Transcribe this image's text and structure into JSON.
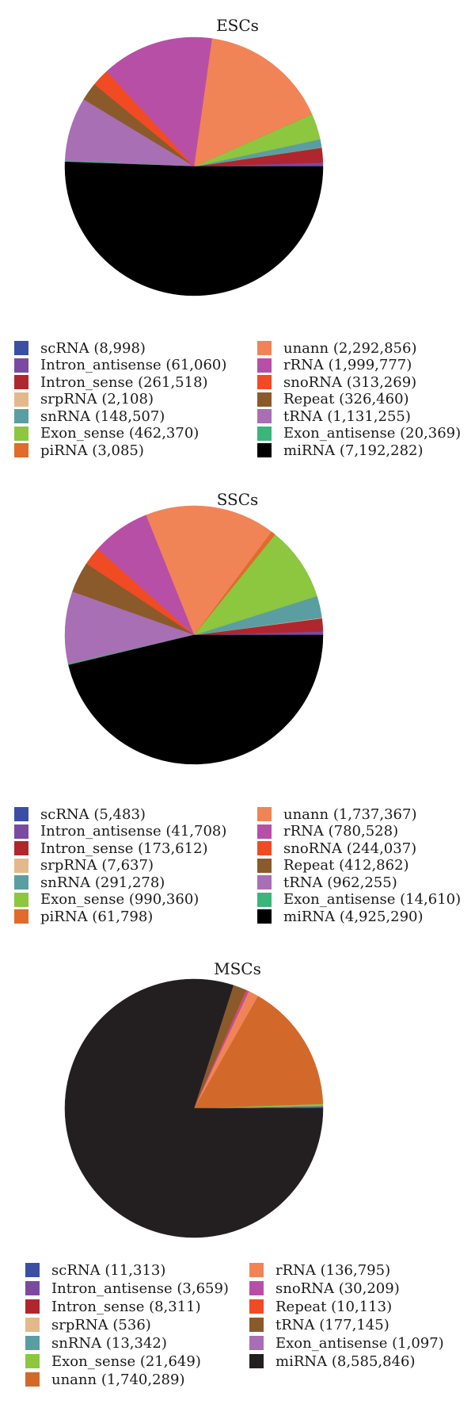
{
  "chart_data": [
    {
      "type": "pie",
      "title": "ESCs",
      "slices": [
        {
          "label": "scRNA",
          "display": "scRNA (8,998)",
          "value": 8998,
          "color": "#3a4fa3"
        },
        {
          "label": "Intron_antisense",
          "display": "Intron_antisense (61,060)",
          "value": 61060,
          "color": "#7b4aa0"
        },
        {
          "label": "Intron_sense",
          "display": "Intron_sense (261,518)",
          "value": 261518,
          "color": "#b0262e"
        },
        {
          "label": "srpRNA",
          "display": "srpRNA (2,108)",
          "value": 2108,
          "color": "#e3b98c"
        },
        {
          "label": "snRNA",
          "display": "snRNA (148,507)",
          "value": 148507,
          "color": "#5a9ea2"
        },
        {
          "label": "Exon_sense",
          "display": "Exon_sense (462,370)",
          "value": 462370,
          "color": "#8dc63f"
        },
        {
          "label": "piRNA",
          "display": "piRNA (3,085)",
          "value": 3085,
          "color": "#e06b2a"
        },
        {
          "label": "unann",
          "display": "unann (2,292,856)",
          "value": 2292856,
          "color": "#f08457"
        },
        {
          "label": "rRNA",
          "display": "rRNA (1,999,777)",
          "value": 1999777,
          "color": "#b84fa6"
        },
        {
          "label": "snoRNA",
          "display": "snoRNA (313,269)",
          "value": 313269,
          "color": "#f04b23"
        },
        {
          "label": "Repeat",
          "display": "Repeat (326,460)",
          "value": 326460,
          "color": "#8a5a2b"
        },
        {
          "label": "tRNA",
          "display": "tRNA (1,131,255)",
          "value": 1131255,
          "color": "#a86fb4"
        },
        {
          "label": "Exon_antisense",
          "display": "Exon_antisense (20,369)",
          "value": 20369,
          "color": "#3bb57a"
        },
        {
          "label": "miRNA",
          "display": "miRNA (7,192,282)",
          "value": 7192282,
          "color": "#000000"
        }
      ]
    },
    {
      "type": "pie",
      "title": "SSCs",
      "slices": [
        {
          "label": "scRNA",
          "display": "scRNA (5,483)",
          "value": 5483,
          "color": "#3a4fa3"
        },
        {
          "label": "Intron_antisense",
          "display": "Intron_antisense (41,708)",
          "value": 41708,
          "color": "#7b4aa0"
        },
        {
          "label": "Intron_sense",
          "display": "Intron_sense (173,612)",
          "value": 173612,
          "color": "#b0262e"
        },
        {
          "label": "srpRNA",
          "display": "srpRNA (7,637)",
          "value": 7637,
          "color": "#e3b98c"
        },
        {
          "label": "snRNA",
          "display": "snRNA (291,278)",
          "value": 291278,
          "color": "#5a9ea2"
        },
        {
          "label": "Exon_sense",
          "display": "Exon_sense (990,360)",
          "value": 990360,
          "color": "#8dc63f"
        },
        {
          "label": "piRNA",
          "display": "piRNA (61,798)",
          "value": 61798,
          "color": "#e06b2a"
        },
        {
          "label": "unann",
          "display": "unann (1,737,367)",
          "value": 1737367,
          "color": "#f08457"
        },
        {
          "label": "rRNA",
          "display": "rRNA (780,528)",
          "value": 780528,
          "color": "#b84fa6"
        },
        {
          "label": "snoRNA",
          "display": "snoRNA (244,037)",
          "value": 244037,
          "color": "#f04b23"
        },
        {
          "label": "Repeat",
          "display": "Repeat (412,862)",
          "value": 412862,
          "color": "#8a5a2b"
        },
        {
          "label": "tRNA",
          "display": "tRNA (962,255)",
          "value": 962255,
          "color": "#a86fb4"
        },
        {
          "label": "Exon_antisense",
          "display": "Exon_antisense (14,610)",
          "value": 14610,
          "color": "#3bb57a"
        },
        {
          "label": "miRNA",
          "display": "miRNA (4,925,290)",
          "value": 4925290,
          "color": "#000000"
        }
      ]
    },
    {
      "type": "pie",
      "title": "MSCs",
      "slices": [
        {
          "label": "scRNA",
          "display": "scRNA (11,313)",
          "value": 11313,
          "color": "#3a4fa3"
        },
        {
          "label": "Intron_antisense",
          "display": "Intron_antisense (3,659)",
          "value": 3659,
          "color": "#7b4aa0"
        },
        {
          "label": "Intron_sense",
          "display": "Intron_sense (8,311)",
          "value": 8311,
          "color": "#b0262e"
        },
        {
          "label": "srpRNA",
          "display": "srpRNA (536)",
          "value": 536,
          "color": "#e3b98c"
        },
        {
          "label": "snRNA",
          "display": "snRNA (13,342)",
          "value": 13342,
          "color": "#5a9ea2"
        },
        {
          "label": "Exon_sense",
          "display": "Exon_sense (21,649)",
          "value": 21649,
          "color": "#8dc63f"
        },
        {
          "label": "unann",
          "display": "unann (1,740,289)",
          "value": 1740289,
          "color": "#d2692a"
        },
        {
          "label": "rRNA",
          "display": "rRNA (136,795)",
          "value": 136795,
          "color": "#f08457"
        },
        {
          "label": "snoRNA",
          "display": "snoRNA (30,209)",
          "value": 30209,
          "color": "#b84fa6"
        },
        {
          "label": "Repeat",
          "display": "Repeat (10,113)",
          "value": 10113,
          "color": "#f04b23"
        },
        {
          "label": "tRNA",
          "display": "tRNA (177,145)",
          "value": 177145,
          "color": "#8a5a2b"
        },
        {
          "label": "Exon_antisense",
          "display": "Exon_antisense (1,097)",
          "value": 1097,
          "color": "#a86fb4"
        },
        {
          "label": "miRNA",
          "display": "miRNA (8,585,846)",
          "value": 8585846,
          "color": "#231f20"
        }
      ]
    }
  ]
}
